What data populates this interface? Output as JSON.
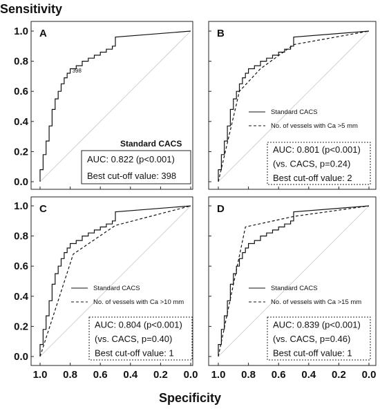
{
  "figure": {
    "ylabel": "Sensitivity",
    "xlabel": "Specificity"
  },
  "chart_data": [
    {
      "type": "line",
      "panel": "A",
      "xlabel": "Specificity",
      "ylabel": "Sensitivity",
      "xlim": [
        1.0,
        0.0
      ],
      "ylim": [
        0.0,
        1.0
      ],
      "x_reversed": true,
      "xticks": [
        "",
        "",
        "",
        "",
        "",
        ""
      ],
      "yticks": [
        "1.0",
        "0.8",
        "0.6",
        "0.4",
        "0.2",
        "0.0"
      ],
      "legend_title": "Standard CACS",
      "stats": [
        "AUC: 0.822 (p<0.001)",
        "Best cut-off value: 398"
      ],
      "annotation": {
        "text": "398",
        "x": 0.8,
        "y": 0.72
      },
      "series": [
        {
          "name": "Standard CACS",
          "style": "solid",
          "x": [
            1.0,
            1.0,
            0.98,
            0.98,
            0.96,
            0.96,
            0.94,
            0.94,
            0.92,
            0.92,
            0.9,
            0.9,
            0.88,
            0.88,
            0.86,
            0.86,
            0.84,
            0.84,
            0.82,
            0.82,
            0.8,
            0.8,
            0.76,
            0.76,
            0.72,
            0.72,
            0.68,
            0.68,
            0.64,
            0.64,
            0.6,
            0.6,
            0.56,
            0.56,
            0.52,
            0.52,
            0.5,
            0.5,
            0.0
          ],
          "y": [
            0.0,
            0.08,
            0.08,
            0.18,
            0.18,
            0.27,
            0.27,
            0.37,
            0.37,
            0.48,
            0.48,
            0.55,
            0.55,
            0.6,
            0.6,
            0.65,
            0.65,
            0.69,
            0.69,
            0.72,
            0.72,
            0.75,
            0.75,
            0.77,
            0.77,
            0.8,
            0.8,
            0.82,
            0.82,
            0.84,
            0.84,
            0.86,
            0.86,
            0.88,
            0.88,
            0.9,
            0.9,
            0.96,
            1.0
          ]
        }
      ]
    },
    {
      "type": "line",
      "panel": "B",
      "xlabel": "Specificity",
      "ylabel": "Sensitivity",
      "xlim": [
        1.0,
        0.0
      ],
      "ylim": [
        0.0,
        1.0
      ],
      "x_reversed": true,
      "xticks": [
        "",
        "",
        "",
        "",
        "",
        ""
      ],
      "yticks": [
        "",
        "",
        "",
        "",
        "",
        ""
      ],
      "legend": [
        "Standard CACS",
        "No. of vessels with Ca >5 mm"
      ],
      "stats": [
        "AUC: 0.801 (p<0.001)",
        "(vs. CACS, p=0.24)",
        "Best cut-off value: 2"
      ],
      "series": [
        {
          "name": "Standard CACS",
          "style": "solid",
          "x": [
            1.0,
            1.0,
            0.98,
            0.98,
            0.96,
            0.96,
            0.94,
            0.94,
            0.92,
            0.92,
            0.9,
            0.9,
            0.88,
            0.88,
            0.86,
            0.86,
            0.84,
            0.84,
            0.82,
            0.82,
            0.8,
            0.8,
            0.76,
            0.76,
            0.72,
            0.72,
            0.68,
            0.68,
            0.64,
            0.64,
            0.6,
            0.6,
            0.56,
            0.56,
            0.52,
            0.52,
            0.5,
            0.5,
            0.0
          ],
          "y": [
            0.0,
            0.08,
            0.08,
            0.18,
            0.18,
            0.27,
            0.27,
            0.37,
            0.37,
            0.48,
            0.48,
            0.55,
            0.55,
            0.6,
            0.6,
            0.65,
            0.65,
            0.69,
            0.69,
            0.72,
            0.72,
            0.75,
            0.75,
            0.77,
            0.77,
            0.8,
            0.8,
            0.82,
            0.82,
            0.84,
            0.84,
            0.86,
            0.86,
            0.88,
            0.88,
            0.9,
            0.9,
            0.96,
            1.0
          ]
        },
        {
          "name": "No. of vessels with Ca >5 mm",
          "style": "dashed",
          "x": [
            1.0,
            0.86,
            0.72,
            0.5,
            0.0
          ],
          "y": [
            0.0,
            0.6,
            0.75,
            0.91,
            1.0
          ]
        }
      ]
    },
    {
      "type": "line",
      "panel": "C",
      "xlabel": "Specificity",
      "ylabel": "Sensitivity",
      "xlim": [
        1.0,
        0.0
      ],
      "ylim": [
        0.0,
        1.0
      ],
      "x_reversed": true,
      "xticks": [
        "1.0",
        "0.8",
        "0.6",
        "0.4",
        "0.2",
        "0.0"
      ],
      "yticks": [
        "1.0",
        "0.8",
        "0.6",
        "0.4",
        "0.2",
        "0.0"
      ],
      "legend": [
        "Standard CACS",
        "No. of vessels with Ca >10 mm"
      ],
      "stats": [
        "AUC: 0.804 (p<0.001)",
        "(vs. CACS, p=0.40)",
        "Best cut-off value: 1"
      ],
      "series": [
        {
          "name": "Standard CACS",
          "style": "solid",
          "x": [
            1.0,
            1.0,
            0.98,
            0.98,
            0.96,
            0.96,
            0.94,
            0.94,
            0.92,
            0.92,
            0.9,
            0.9,
            0.88,
            0.88,
            0.86,
            0.86,
            0.84,
            0.84,
            0.82,
            0.82,
            0.8,
            0.8,
            0.76,
            0.76,
            0.72,
            0.72,
            0.68,
            0.68,
            0.64,
            0.64,
            0.6,
            0.6,
            0.56,
            0.56,
            0.52,
            0.52,
            0.5,
            0.5,
            0.0
          ],
          "y": [
            0.0,
            0.08,
            0.08,
            0.18,
            0.18,
            0.27,
            0.27,
            0.37,
            0.37,
            0.48,
            0.48,
            0.55,
            0.55,
            0.6,
            0.6,
            0.65,
            0.65,
            0.69,
            0.69,
            0.72,
            0.72,
            0.75,
            0.75,
            0.77,
            0.77,
            0.8,
            0.8,
            0.82,
            0.82,
            0.84,
            0.84,
            0.86,
            0.86,
            0.88,
            0.88,
            0.9,
            0.9,
            0.96,
            1.0
          ]
        },
        {
          "name": "No. of vessels with Ca >10 mm",
          "style": "dashed",
          "x": [
            1.0,
            0.78,
            0.5,
            0.0
          ],
          "y": [
            0.0,
            0.68,
            0.87,
            1.0
          ]
        }
      ]
    },
    {
      "type": "line",
      "panel": "D",
      "xlabel": "Specificity",
      "ylabel": "Sensitivity",
      "xlim": [
        1.0,
        0.0
      ],
      "ylim": [
        0.0,
        1.0
      ],
      "x_reversed": true,
      "xticks": [
        "1.0",
        "0.8",
        "0.6",
        "0.4",
        "0.2",
        "0.0"
      ],
      "yticks": [
        "",
        "",
        "",
        "",
        "",
        ""
      ],
      "legend": [
        "Standard CACS",
        "No. of vessels with Ca >15 mm"
      ],
      "stats": [
        "AUC: 0.839 (p<0.001)",
        "(vs. CACS, p=0.46)",
        "Best cut-off value: 1"
      ],
      "series": [
        {
          "name": "Standard CACS",
          "style": "solid",
          "x": [
            1.0,
            1.0,
            0.98,
            0.98,
            0.96,
            0.96,
            0.94,
            0.94,
            0.92,
            0.92,
            0.9,
            0.9,
            0.88,
            0.88,
            0.86,
            0.86,
            0.84,
            0.84,
            0.82,
            0.82,
            0.8,
            0.8,
            0.76,
            0.76,
            0.72,
            0.72,
            0.68,
            0.68,
            0.64,
            0.64,
            0.6,
            0.6,
            0.56,
            0.56,
            0.52,
            0.52,
            0.5,
            0.5,
            0.0
          ],
          "y": [
            0.0,
            0.08,
            0.08,
            0.18,
            0.18,
            0.27,
            0.27,
            0.37,
            0.37,
            0.48,
            0.48,
            0.55,
            0.55,
            0.6,
            0.6,
            0.65,
            0.65,
            0.69,
            0.69,
            0.72,
            0.72,
            0.75,
            0.75,
            0.77,
            0.77,
            0.8,
            0.8,
            0.82,
            0.82,
            0.84,
            0.84,
            0.86,
            0.86,
            0.88,
            0.88,
            0.9,
            0.9,
            0.96,
            1.0
          ]
        },
        {
          "name": "No. of vessels with Ca >15 mm",
          "style": "dashed",
          "x": [
            1.0,
            0.82,
            0.5,
            0.0
          ],
          "y": [
            0.0,
            0.86,
            0.93,
            1.0
          ]
        }
      ]
    }
  ]
}
